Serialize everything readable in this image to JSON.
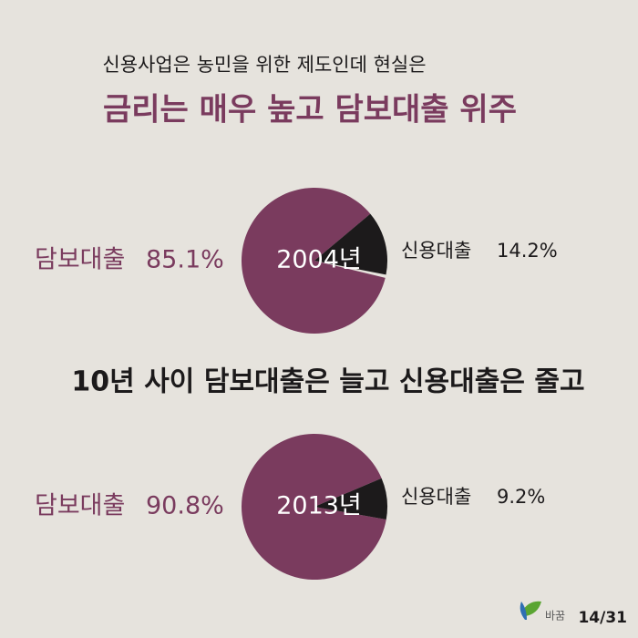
{
  "intro": "신용사업은 농민을 위한 제도인데 현실은",
  "headline": "금리는 매우 높고 담보대출 위주",
  "middle_text": "10년 사이 담보대출은 늘고 신용대출은 줄고",
  "logo_text": "바꿈",
  "page_number": "14/31",
  "chart_data": [
    {
      "type": "pie",
      "title": "2004년",
      "categories": [
        "담보대출",
        "신용대출"
      ],
      "values": [
        85.1,
        14.2
      ],
      "value_labels": [
        "85.1%",
        "14.2%"
      ],
      "colors": [
        "#7a3b5e",
        "#1c1a1b"
      ]
    },
    {
      "type": "pie",
      "title": "2013년",
      "categories": [
        "담보대출",
        "신용대출"
      ],
      "values": [
        90.8,
        9.2
      ],
      "value_labels": [
        "90.8%",
        "9.2%"
      ],
      "colors": [
        "#7a3b5e",
        "#1c1a1b"
      ]
    }
  ]
}
